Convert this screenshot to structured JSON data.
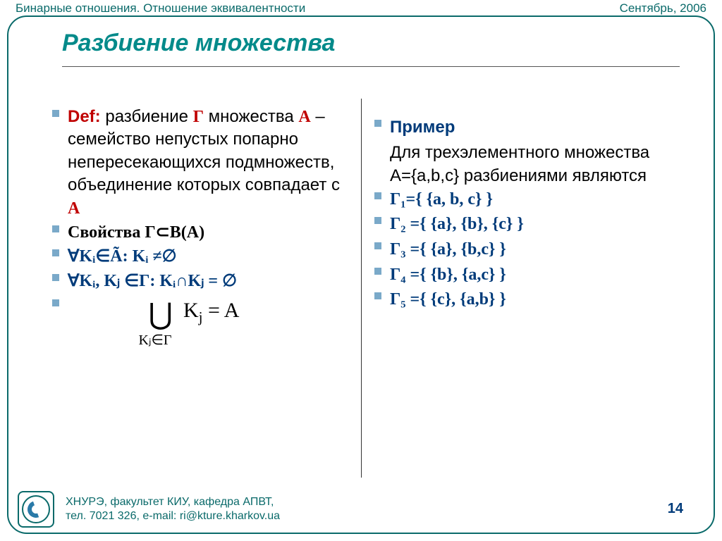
{
  "header": {
    "topic": "Бинарные отношения. Отношение эквивалентности",
    "date": "Сентябрь, 2006"
  },
  "title": "Разбиение множества",
  "left": {
    "def_label": "Def:",
    "def_text_1": "разбиение ",
    "def_gamma": "Γ",
    "def_text_2": " множества ",
    "def_A": "A",
    "def_text_3": " – семейство непустых попарно непересекающихся подмножеств, объединение которых совпадает с ",
    "def_A2": "A",
    "props_label": "Свойства Γ⊂B(A)",
    "p1": "∀Kᵢ∈Ã: Kᵢ ≠∅",
    "p2": "∀Kᵢ, Kⱼ ∈Γ: Kᵢ∩Kⱼ = ∅",
    "union_main": "⋃  Kⱼ = A",
    "union_sub": "Kⱼ∈Γ"
  },
  "right": {
    "example_label": "Пример",
    "example_intro": "Для трехэлементного множества",
    "example_set": "A={a,b,c} разбиениями являются",
    "g1": "Γ₁={ {a, b, c} }",
    "g2": "Γ₂ ={ {a}, {b}, {c} }",
    "g3": "Γ₃ ={ {a}, {b,c} }",
    "g4": "Γ₄ ={ {b}, {a,c} }",
    "g5": "Γ₅ ={ {c}, {a,b} }"
  },
  "footer": {
    "line1": "ХНУРЭ, факультет КИУ,  кафедра АПВТ,",
    "line2": "тел. 7021 326, e-mail: ri@kture.kharkov.ua",
    "page": "14"
  },
  "colors": {
    "frame": "#0a6a6a",
    "title": "#048a8a",
    "red": "#c00000",
    "blue": "#003b7a",
    "bullet": "#7aa9c9"
  }
}
